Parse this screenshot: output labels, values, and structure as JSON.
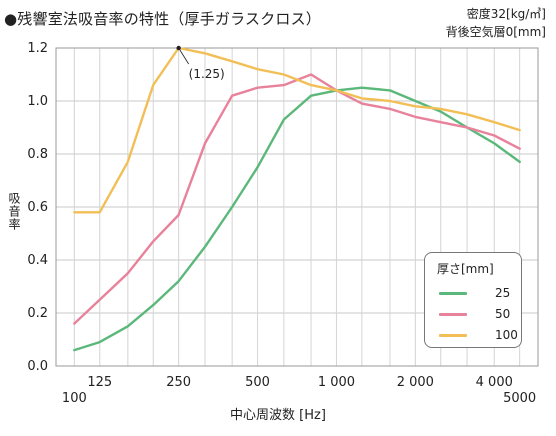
{
  "title": "●残響室法吸音率の特性（厚手ガラスクロス）",
  "meta": {
    "density": "密度32[kg/㎥]",
    "airgap": "背後空気層0[mm]"
  },
  "chart_data": {
    "type": "line",
    "xscale": "log",
    "x": [
      100,
      125,
      160,
      200,
      250,
      315,
      400,
      500,
      630,
      800,
      1000,
      1250,
      1600,
      2000,
      2500,
      3150,
      4000,
      5000
    ],
    "xticks": [
      {
        "value": 100,
        "label": "100",
        "row": 2
      },
      {
        "value": 125,
        "label": "125",
        "row": 1
      },
      {
        "value": 250,
        "label": "250",
        "row": 1
      },
      {
        "value": 500,
        "label": "500",
        "row": 1
      },
      {
        "value": 1000,
        "label": "1 000",
        "row": 1
      },
      {
        "value": 2000,
        "label": "2 000",
        "row": 1
      },
      {
        "value": 4000,
        "label": "4 000",
        "row": 1
      },
      {
        "value": 5000,
        "label": "5000",
        "row": 2
      }
    ],
    "yticks": [
      "0.0",
      "0.2",
      "0.4",
      "0.6",
      "0.8",
      "1.0",
      "1.2"
    ],
    "ylim": [
      0,
      1.2
    ],
    "xlabel": "中心周波数 [Hz]",
    "ylabel": "吸音率",
    "legend_title": "厚さ[mm]",
    "legend_position": "bottom-right",
    "grid": true,
    "series": [
      {
        "name": "25",
        "color": "#5cb87a",
        "values": [
          0.06,
          0.09,
          0.15,
          0.23,
          0.32,
          0.45,
          0.6,
          0.75,
          0.93,
          1.02,
          1.04,
          1.05,
          1.04,
          1.0,
          0.96,
          0.9,
          0.84,
          0.77
        ]
      },
      {
        "name": "50",
        "color": "#e8829b",
        "values": [
          0.16,
          0.25,
          0.35,
          0.47,
          0.57,
          0.84,
          1.02,
          1.05,
          1.06,
          1.1,
          1.04,
          0.99,
          0.97,
          0.94,
          0.92,
          0.9,
          0.87,
          0.82
        ]
      },
      {
        "name": "100",
        "color": "#f2bf57",
        "values": [
          0.58,
          0.58,
          0.77,
          1.06,
          1.2,
          1.18,
          1.15,
          1.12,
          1.1,
          1.06,
          1.04,
          1.01,
          1.0,
          0.98,
          0.97,
          0.95,
          0.92,
          0.89
        ]
      }
    ],
    "annotation": {
      "text": "(1.25)",
      "x": 250,
      "y": 1.2
    }
  }
}
